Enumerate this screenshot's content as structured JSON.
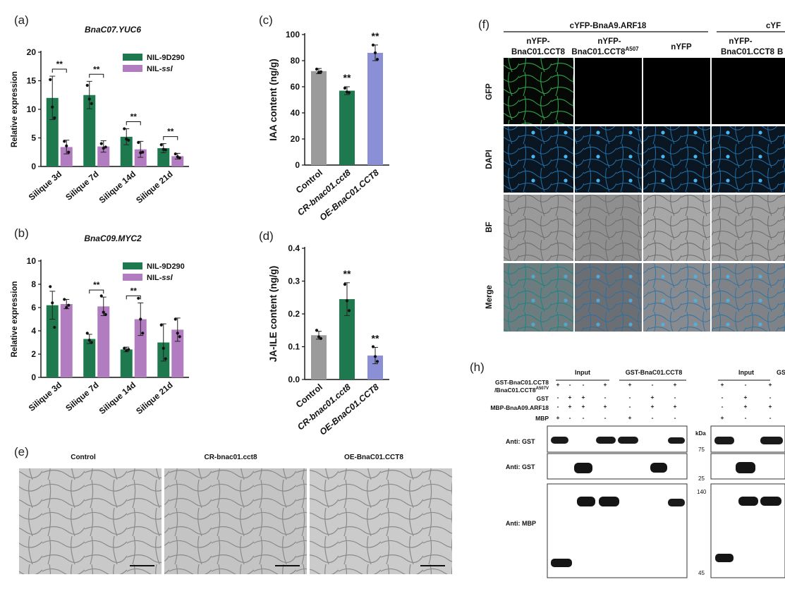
{
  "panel_labels": {
    "a": "(a)",
    "b": "(b)",
    "c": "(c)",
    "d": "(d)",
    "e": "(e)",
    "f": "(f)",
    "h": "(h)"
  },
  "colors": {
    "green": "#1e7a4e",
    "purple": "#b27cc0",
    "gray": "#9b9b9b",
    "blue": "#8b8fd6",
    "gfp": "#2fa04a",
    "dapi": "#2b8fd8"
  },
  "chart_data": [
    {
      "id": "a",
      "type": "bar",
      "title": "BnaC07.YUC6",
      "xlabel": "",
      "ylabel": "Relative expression",
      "ylim": [
        0,
        20
      ],
      "yticks": [
        0,
        5,
        10,
        15,
        20
      ],
      "categories": [
        "Silique 3d",
        "Silique 7d",
        "Silique 14d",
        "Silique 21d"
      ],
      "series": [
        {
          "name": "NIL-9D290",
          "color": "#1e7a4e",
          "values": [
            12,
            12.5,
            5.2,
            3.2
          ],
          "errors": [
            3.8,
            2.4,
            1.4,
            0.8
          ],
          "points": [
            [
              15.2,
              10.4,
              8.5
            ],
            [
              14.2,
              11.8,
              11.0
            ],
            [
              6.6,
              4.8,
              4.6
            ],
            [
              3.8,
              3.0,
              2.9
            ]
          ]
        },
        {
          "name": "NIL-ssl",
          "color": "#b27cc0",
          "values": [
            3.4,
            3.5,
            3.0,
            1.8
          ],
          "errors": [
            1.2,
            1.0,
            1.4,
            0.5
          ],
          "points": [
            [
              4.4,
              3.6,
              2.5
            ],
            [
              4.0,
              3.2,
              3.4
            ],
            [
              4.2,
              2.4,
              2.5
            ],
            [
              2.2,
              1.7,
              1.5
            ]
          ]
        }
      ],
      "significance": [
        "**",
        "**",
        "**",
        "**"
      ],
      "legend_position": "top-right"
    },
    {
      "id": "b",
      "type": "bar",
      "title": "BnaC09.MYC2",
      "xlabel": "",
      "ylabel": "Relative expression",
      "ylim": [
        0,
        10
      ],
      "yticks": [
        0,
        2,
        4,
        6,
        8,
        10
      ],
      "categories": [
        "Silique 3d",
        "Silique 7d",
        "Silique 14d",
        "Silique 21d"
      ],
      "series": [
        {
          "name": "NIL-9D290",
          "color": "#1e7a4e",
          "values": [
            6.2,
            3.3,
            2.4,
            3.0
          ],
          "errors": [
            1.2,
            0.4,
            0.2,
            1.6
          ],
          "points": [
            [
              7.8,
              6.4,
              4.3
            ],
            [
              3.8,
              3.2,
              3.0
            ],
            [
              2.5,
              2.3,
              2.4
            ],
            [
              4.5,
              2.5,
              1.6
            ]
          ]
        },
        {
          "name": "NIL-ssl",
          "color": "#b27cc0",
          "values": [
            6.3,
            6.1,
            5.0,
            4.1
          ],
          "errors": [
            0.4,
            0.8,
            1.4,
            1.0
          ],
          "points": [
            [
              6.7,
              6.0,
              6.2
            ],
            [
              7.0,
              5.6,
              5.4
            ],
            [
              6.8,
              5.0,
              3.8
            ],
            [
              5.0,
              3.8,
              3.5
            ]
          ]
        }
      ],
      "significance": [
        "",
        "**",
        "**",
        ""
      ],
      "legend_position": "top-right"
    },
    {
      "id": "c",
      "type": "bar",
      "title": "",
      "xlabel": "",
      "ylabel": "IAA content (ng/g)",
      "ylim": [
        0,
        100
      ],
      "yticks": [
        0,
        20,
        40,
        60,
        80,
        100
      ],
      "categories": [
        "Control",
        "CR-bnac01.cct8",
        "OE-BnaC01.CCT8"
      ],
      "series": [
        {
          "name": "",
          "values": [
            72,
            57,
            86
          ],
          "errors": [
            2,
            3,
            6
          ],
          "colors": [
            "#9b9b9b",
            "#1e7a4e",
            "#8b8fd6"
          ],
          "points": [
            [
              73.5,
              71,
              71.5
            ],
            [
              59,
              56,
              55.5
            ],
            [
              92,
              86,
              81
            ]
          ]
        }
      ],
      "significance": [
        "",
        "**",
        "**"
      ]
    },
    {
      "id": "d",
      "type": "bar",
      "title": "",
      "xlabel": "",
      "ylabel": "JA-ILE content (ng/g)",
      "ylim": [
        0,
        0.4
      ],
      "yticks": [
        0.0,
        0.1,
        0.2,
        0.3,
        0.4
      ],
      "categories": [
        "Control",
        "CR-bnac01.cct8",
        "OE-BnaC01.CCT8"
      ],
      "series": [
        {
          "name": "",
          "values": [
            0.135,
            0.245,
            0.073
          ],
          "errors": [
            0.012,
            0.05,
            0.025
          ],
          "colors": [
            "#9b9b9b",
            "#1e7a4e",
            "#8b8fd6"
          ],
          "points": [
            [
              0.15,
              0.13,
              0.125
            ],
            [
              0.29,
              0.24,
              0.21
            ],
            [
              0.1,
              0.07,
              0.055
            ]
          ]
        }
      ],
      "significance": [
        "",
        "**",
        "**"
      ]
    }
  ],
  "panel_e": {
    "columns": [
      "Control",
      "CR-bnac01.cct8",
      "OE-BnaC01.CCT8"
    ]
  },
  "panel_f": {
    "group_header": "cYFP-BnaA9.ARF18",
    "group_header_2": "cYF",
    "columns": [
      "nYFP-\nBnaC01.CCT8",
      "nYFP-\nBnaC01.CCT8A507",
      "nYFP",
      "nYFP-\nBnaC01.CCT8",
      "B"
    ],
    "rows": [
      "GFP",
      "DAPI",
      "BF",
      "Merge"
    ]
  },
  "panel_h": {
    "header_input": "Input",
    "header_pull": "GST-BnaC01.CCT8",
    "header_input_2": "Input",
    "header_pull_2": "GS",
    "row_labels": [
      "GST-BnaC01.CCT8\n/BnaC01.CCT8A507V",
      "GST",
      "MBP-BnaA09.ARF18",
      "MBP"
    ],
    "signs": [
      [
        "+",
        "-",
        "-",
        "+",
        "+",
        "-",
        "+"
      ],
      [
        "-",
        "+",
        "+",
        "-",
        "-",
        "+",
        "-"
      ],
      [
        "-",
        "+",
        "+",
        "+",
        "-",
        "+",
        "+"
      ],
      [
        "+",
        "-",
        "-",
        "-",
        "+",
        "-",
        "-"
      ]
    ],
    "signs_2": [
      [
        "+",
        "-",
        "+"
      ],
      [
        "-",
        "+",
        "-"
      ],
      [
        "-",
        "+",
        "+"
      ],
      [
        "+",
        "-",
        "-"
      ]
    ],
    "blot_labels": [
      "Anti: GST",
      "Anti: GST",
      "Anti: MBP"
    ],
    "kda_label": "kDa",
    "markers": [
      "75",
      "25",
      "140",
      "45"
    ]
  }
}
